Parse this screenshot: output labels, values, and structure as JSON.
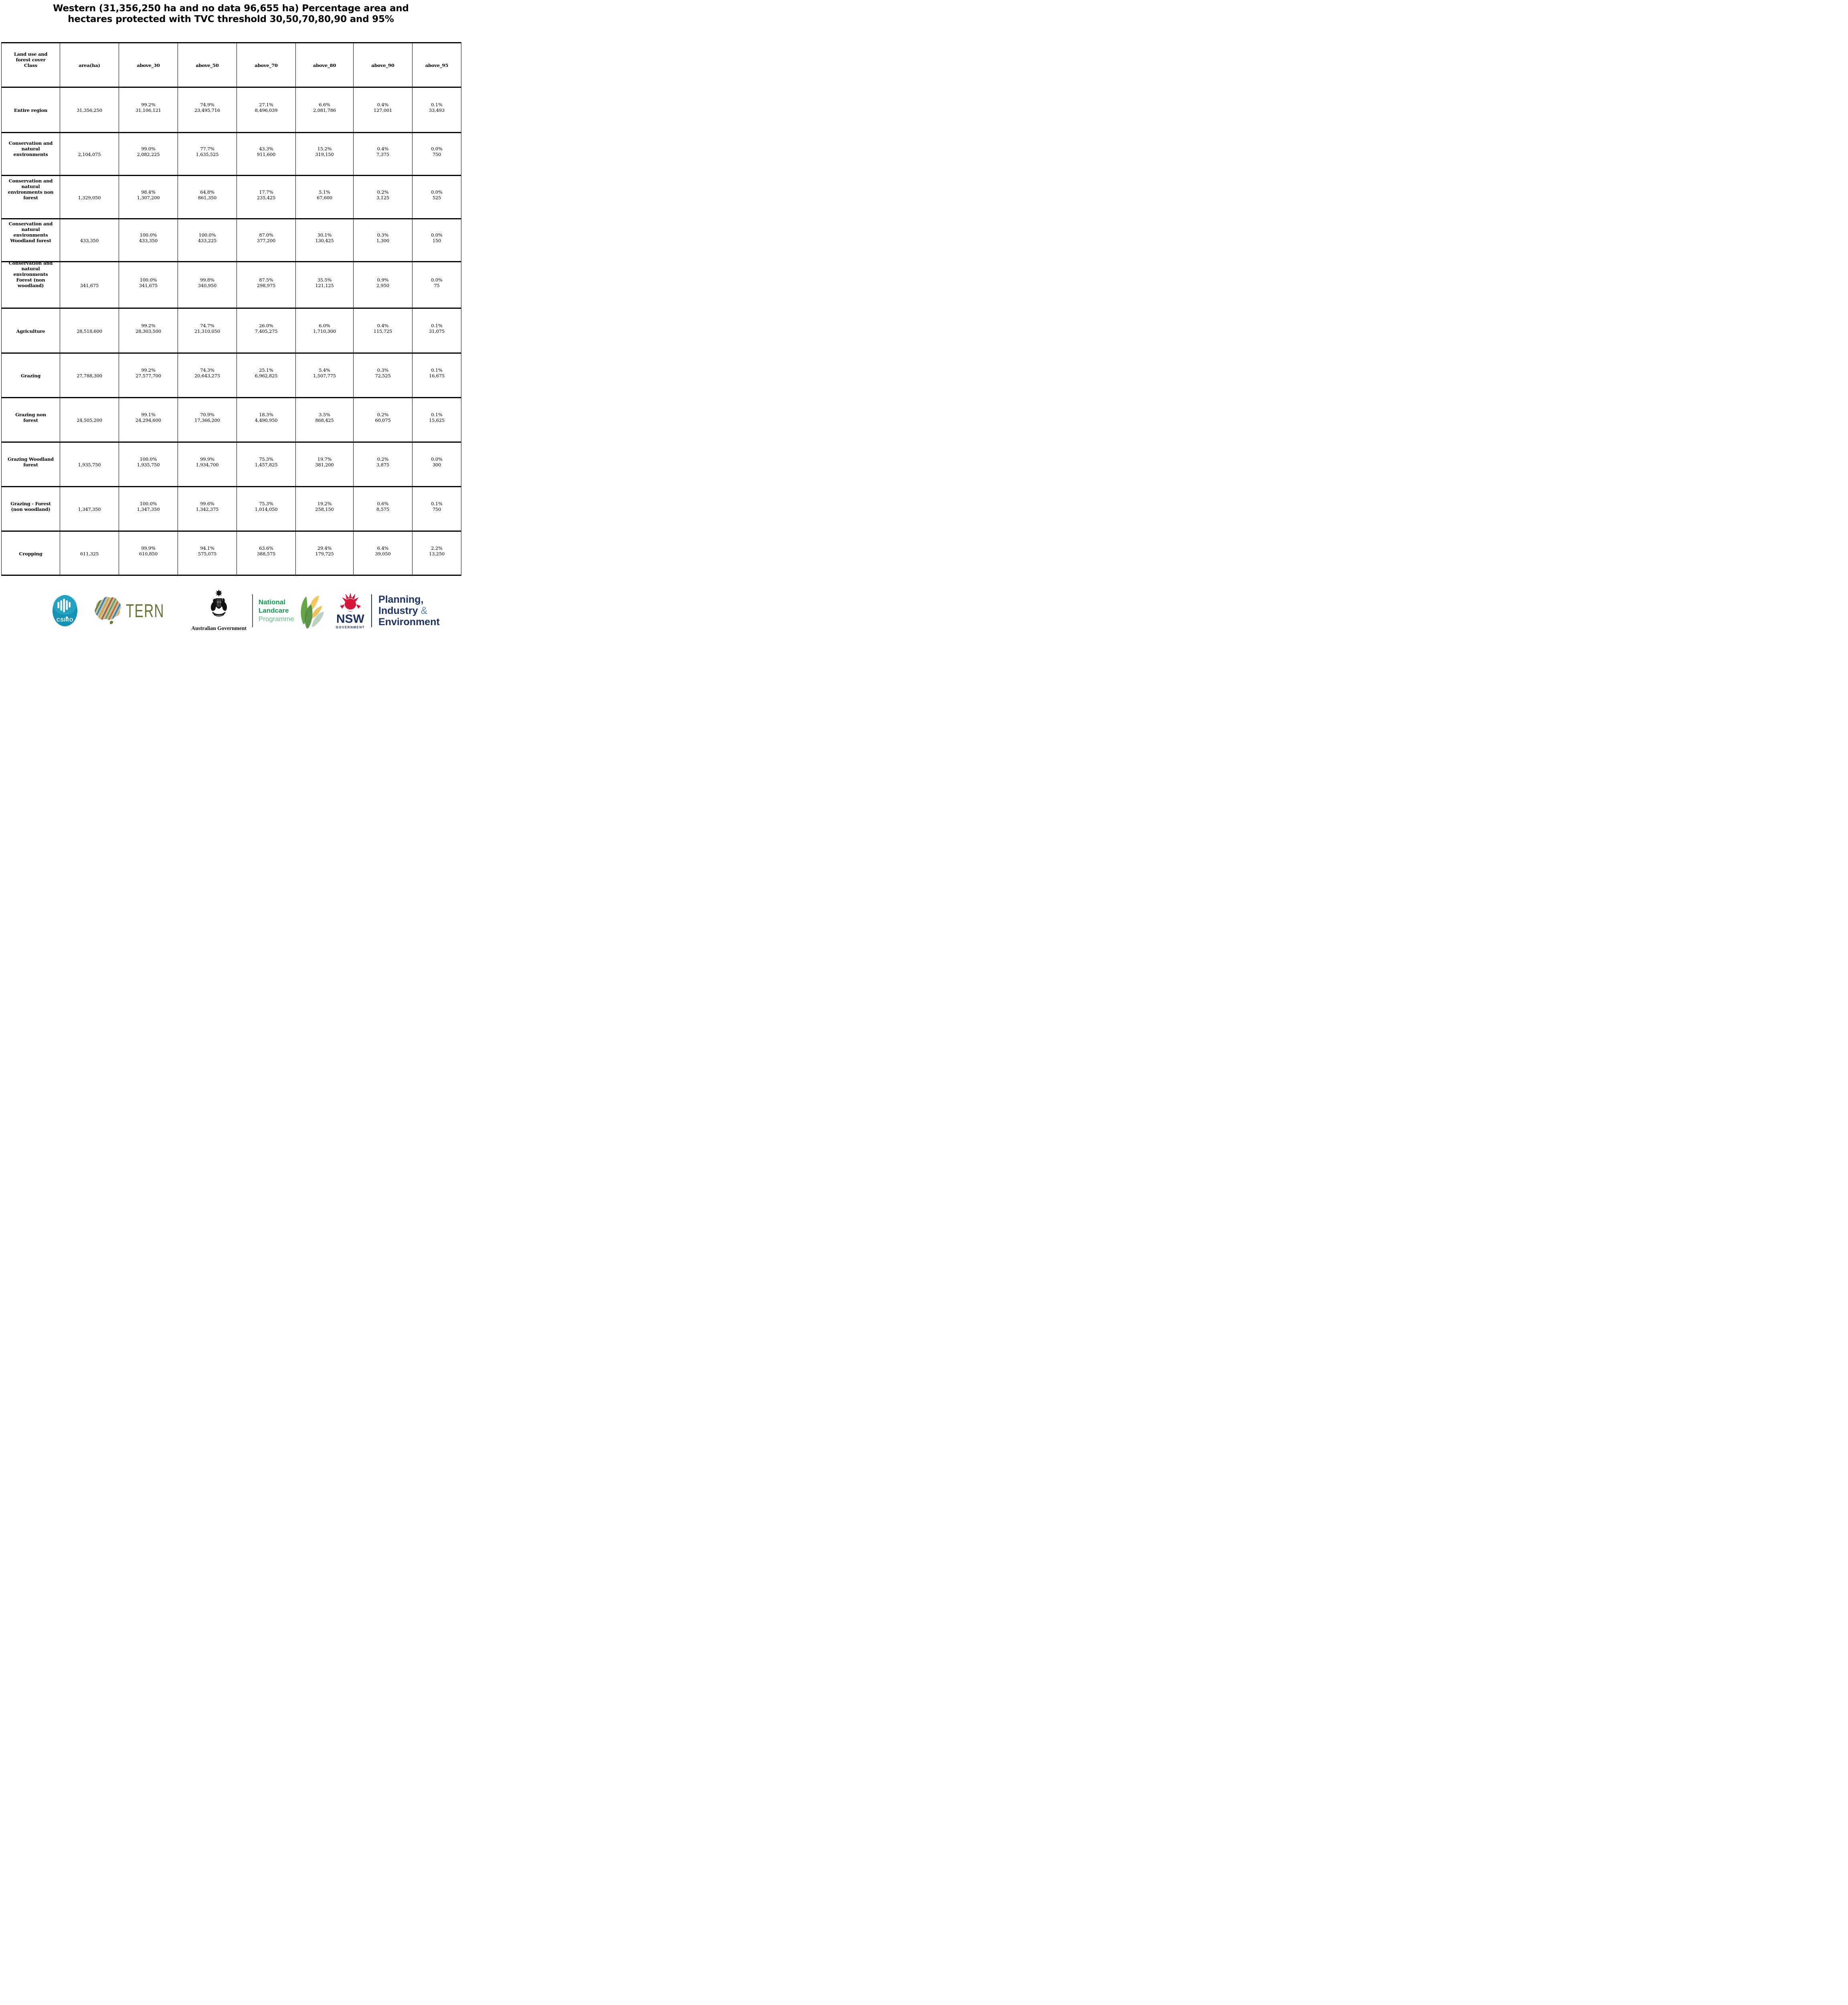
{
  "title": "Western (31,356,250 ha and no data 96,655 ha) Percentage area and\nhectares protected with TVC threshold 30,50,70,80,90 and 95%",
  "chart_data": {
    "type": "table",
    "title": "Western (31,356,250 ha and no data 96,655 ha) Percentage area and hectares protected with TVC threshold 30,50,70,80,90 and 95%",
    "columns": [
      "Land use and\nforest cover\nClass",
      "area(ha)",
      "above_30",
      "above_50",
      "above_70",
      "above_80",
      "above_90",
      "above_95"
    ],
    "rows": [
      {
        "label": "Entire region",
        "area": "31,356,250",
        "cells": [
          [
            "99.2%",
            "31,106,121"
          ],
          [
            "74.9%",
            "23,495,716"
          ],
          [
            "27.1%",
            "8,496,039"
          ],
          [
            "6.6%",
            "2,081,786"
          ],
          [
            "0.4%",
            "127,001"
          ],
          [
            "0.1%",
            "33,493"
          ]
        ]
      },
      {
        "label": "Conservation and\nnatural\nenvironments",
        "area": "2,104,075",
        "cells": [
          [
            "99.0%",
            "2,082,225"
          ],
          [
            "77.7%",
            "1,635,525"
          ],
          [
            "43.3%",
            "911,600"
          ],
          [
            "15.2%",
            "319,150"
          ],
          [
            "0.4%",
            "7,375"
          ],
          [
            "0.0%",
            "750"
          ]
        ]
      },
      {
        "label": "Conservation and\nnatural\nenvironments non\nforest",
        "area": "1,329,050",
        "cells": [
          [
            "98.4%",
            "1,307,200"
          ],
          [
            "64.8%",
            "861,350"
          ],
          [
            "17.7%",
            "235,425"
          ],
          [
            "5.1%",
            "67,600"
          ],
          [
            "0.2%",
            "3,125"
          ],
          [
            "0.0%",
            "525"
          ]
        ]
      },
      {
        "label": "Conservation and\nnatural\nenvironments\nWoodland forest",
        "area": "433,350",
        "cells": [
          [
            "100.0%",
            "433,350"
          ],
          [
            "100.0%",
            "433,225"
          ],
          [
            "87.0%",
            "377,200"
          ],
          [
            "30.1%",
            "130,425"
          ],
          [
            "0.3%",
            "1,300"
          ],
          [
            "0.0%",
            "150"
          ]
        ]
      },
      {
        "label": "Conservation and\nnatural\nenvironments\nForest (non\nwoodland)",
        "area": "341,675",
        "cells": [
          [
            "100.0%",
            "341,675"
          ],
          [
            "99.8%",
            "340,950"
          ],
          [
            "87.5%",
            "298,975"
          ],
          [
            "35.5%",
            "121,125"
          ],
          [
            "0.9%",
            "2,950"
          ],
          [
            "0.0%",
            "75"
          ]
        ]
      },
      {
        "label": "Agriculture",
        "area": "28,518,600",
        "cells": [
          [
            "99.2%",
            "28,303,500"
          ],
          [
            "74.7%",
            "21,310,050"
          ],
          [
            "26.0%",
            "7,405,275"
          ],
          [
            "6.0%",
            "1,710,300"
          ],
          [
            "0.4%",
            "115,725"
          ],
          [
            "0.1%",
            "31,075"
          ]
        ]
      },
      {
        "label": "Grazing",
        "area": "27,788,300",
        "cells": [
          [
            "99.2%",
            "27,577,700"
          ],
          [
            "74.3%",
            "20,643,275"
          ],
          [
            "25.1%",
            "6,962,825"
          ],
          [
            "5.4%",
            "1,507,775"
          ],
          [
            "0.3%",
            "72,525"
          ],
          [
            "0.1%",
            "16,675"
          ]
        ]
      },
      {
        "label": "Grazing non\nforest",
        "area": "24,505,200",
        "cells": [
          [
            "99.1%",
            "24,294,600"
          ],
          [
            "70.9%",
            "17,366,200"
          ],
          [
            "18.3%",
            "4,490,950"
          ],
          [
            "3.5%",
            "868,425"
          ],
          [
            "0.2%",
            "60,075"
          ],
          [
            "0.1%",
            "15,625"
          ]
        ]
      },
      {
        "label": "Grazing Woodland\nforest",
        "area": "1,935,750",
        "cells": [
          [
            "100.0%",
            "1,935,750"
          ],
          [
            "99.9%",
            "1,934,700"
          ],
          [
            "75.3%",
            "1,457,825"
          ],
          [
            "19.7%",
            "381,200"
          ],
          [
            "0.2%",
            "3,875"
          ],
          [
            "0.0%",
            "300"
          ]
        ]
      },
      {
        "label": "Grazing - Forest\n(non woodland)",
        "area": "1,347,350",
        "cells": [
          [
            "100.0%",
            "1,347,350"
          ],
          [
            "99.6%",
            "1,342,375"
          ],
          [
            "75.3%",
            "1,014,050"
          ],
          [
            "19.2%",
            "258,150"
          ],
          [
            "0.6%",
            "8,575"
          ],
          [
            "0.1%",
            "750"
          ]
        ]
      },
      {
        "label": "Cropping",
        "area": "611,325",
        "cells": [
          [
            "99.9%",
            "610,850"
          ],
          [
            "94.1%",
            "575,075"
          ],
          [
            "63.6%",
            "388,575"
          ],
          [
            "29.4%",
            "179,725"
          ],
          [
            "6.4%",
            "39,050"
          ],
          [
            "2.2%",
            "13,250"
          ]
        ]
      }
    ]
  },
  "footer": {
    "csiro": {
      "label": "CSIRO"
    },
    "tern": {
      "label": "TERN"
    },
    "aus_gov": {
      "label": "Australian Government"
    },
    "landcare": {
      "line1": "National",
      "line2": "Landcare",
      "line3": "Programme"
    },
    "nsw": {
      "label": "NSW",
      "sub": "GOVERNMENT"
    },
    "dpie": {
      "line1": "Planning,",
      "line2": "Industry",
      "amp": "&",
      "line3": "Environment"
    }
  },
  "colors": {
    "navy": "#1b3367",
    "nsw_red": "#d7153a",
    "landcare_green": "#169b54",
    "landcare_light": "#67c08b",
    "csiro_teal": "#1293b5",
    "csiro_teal_light": "#35aecb",
    "tern_olive": "#6b7433",
    "amp_blue": "#5e87c2",
    "crest_black": "#111111"
  }
}
